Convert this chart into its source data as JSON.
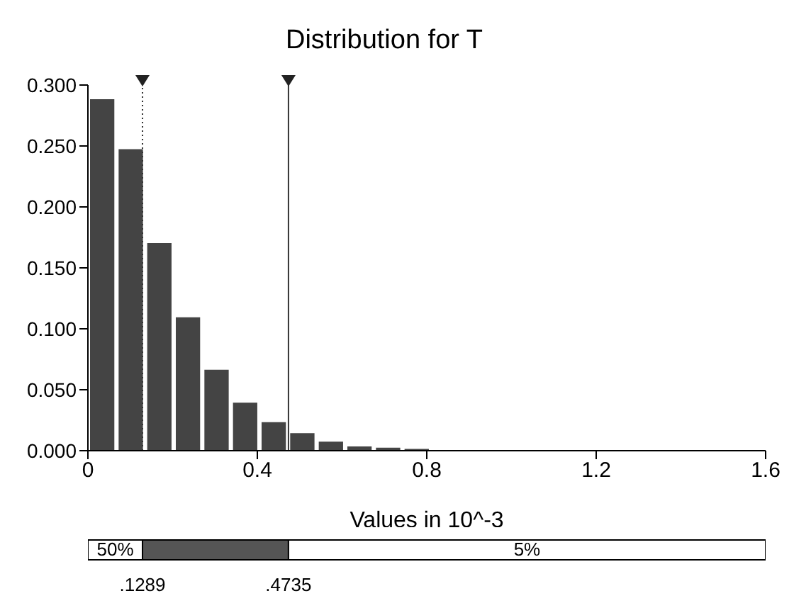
{
  "chart_data": [
    {
      "type": "histogram",
      "title": "Distribution for T",
      "xlabel": "Values in 10^-3",
      "bins": [
        0,
        0.0675,
        0.135,
        0.2025,
        0.27,
        0.3375,
        0.405,
        0.4725,
        0.54,
        0.6075,
        0.675,
        0.7425,
        0.81,
        0.8775
      ],
      "values": [
        0.289,
        0.248,
        0.171,
        0.11,
        0.067,
        0.04,
        0.024,
        0.015,
        0.008,
        0.004,
        0.003,
        0.002,
        0.001
      ],
      "color": "#444444",
      "xlim": [
        0,
        1.6
      ],
      "xticks": [
        0,
        0.4,
        0.8,
        1.2,
        1.6
      ],
      "ylim": [
        0,
        0.3
      ],
      "yticks": [
        {
          "value": 0,
          "label": "0.000"
        },
        {
          "value": 0.05,
          "label": "0.050"
        },
        {
          "value": 0.1,
          "label": "0.100"
        },
        {
          "value": 0.15,
          "label": "0.150"
        },
        {
          "value": 0.2,
          "label": "0.200"
        },
        {
          "value": 0.25,
          "label": "0.250"
        },
        {
          "value": 0.3,
          "label": "0.300"
        }
      ],
      "ref_lines": [
        {
          "axis": "x",
          "value": 0.1289,
          "line_style": "dotted"
        },
        {
          "axis": "x",
          "value": 0.4735,
          "line_style": "solid"
        }
      ],
      "grid": false,
      "legend": false
    },
    {
      "type": "bar",
      "orientation": "horizontal",
      "stacked": true,
      "categories": [
        null
      ],
      "series": [
        {
          "color": "#ffffff",
          "values": [
            0.1289
          ]
        },
        {
          "color": "#555555",
          "values": [
            0.3446
          ]
        },
        {
          "color": "#ffffff",
          "values": [
            1.1265
          ]
        }
      ],
      "annotations": [
        "50%",
        "5%"
      ],
      "xlim": [
        0,
        1.6
      ],
      "xticks": [
        {
          "value": 0.1289,
          "label": ".1289"
        },
        {
          "value": 0.4735,
          "label": ".4735"
        }
      ],
      "tick_labels": "x",
      "grid": false,
      "legend": false
    }
  ]
}
